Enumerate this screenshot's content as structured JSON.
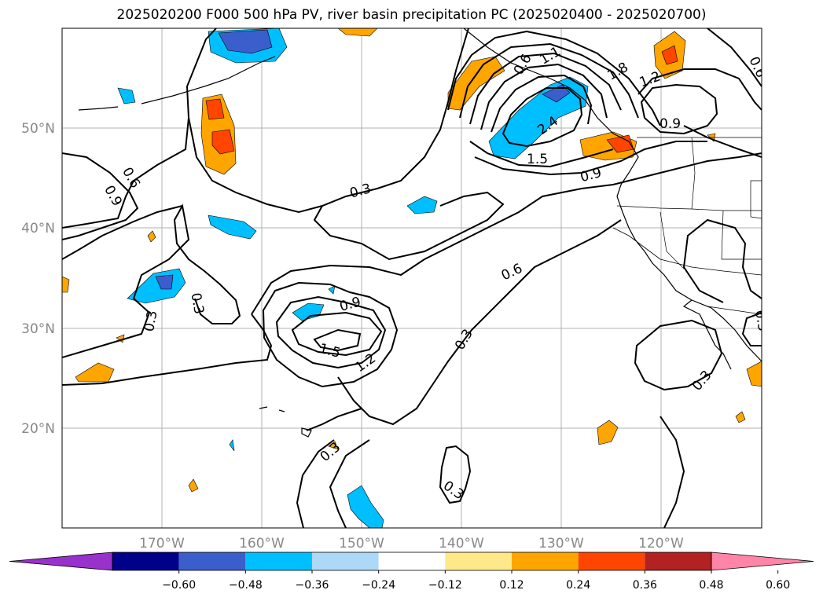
{
  "title": "2025020200 F000 500 hPa PV, river basin precipitation PC (2025020400 - 2025020700)",
  "map": {
    "projection": "PlateCarree",
    "lon_range": [
      "180°W",
      "110°W"
    ],
    "lat_range": [
      "10°N",
      "60°N"
    ],
    "gridlines": true,
    "lat_ticks": [
      "50°N",
      "40°N",
      "30°N",
      "20°N"
    ],
    "lon_ticks": [
      "170°W",
      "160°W",
      "150°W",
      "140°W",
      "130°W",
      "120°W"
    ],
    "contour_labels": [
      "0.3",
      "0.6",
      "0.9",
      "0.3",
      "0.3",
      "0.9",
      "1.5",
      "1.2",
      "0.3",
      "0.6",
      "0.3",
      "0.3",
      "0.3",
      "2.4",
      "1.5",
      "0.9",
      "1.2",
      "1.8",
      "0.9",
      "0.6",
      "1.1",
      "0.3",
      "0.6"
    ]
  },
  "colorbar": {
    "ticks": [
      "−0.60",
      "−0.48",
      "−0.36",
      "−0.24",
      "−0.12",
      "0.12",
      "0.24",
      "0.36",
      "0.48",
      "0.60"
    ],
    "colors": [
      "#9932cc",
      "#00008b",
      "#3a5fcd",
      "#00bfff",
      "#add8f8",
      "#ffffff",
      "#ffe88a",
      "#ffa500",
      "#ff4500",
      "#b22222",
      "#ff85a8"
    ],
    "extend": "both"
  }
}
